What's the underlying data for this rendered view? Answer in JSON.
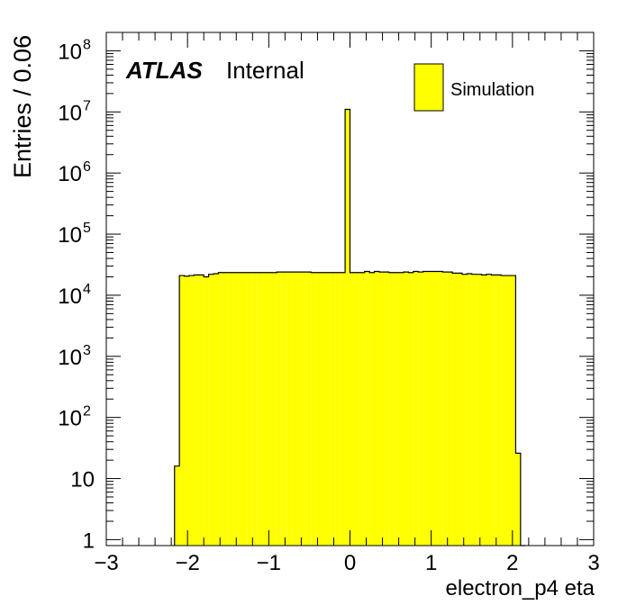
{
  "chart_data": {
    "type": "bar",
    "title": "",
    "xlabel": "electron_p4 eta",
    "ylabel": "Entries / 0.06",
    "xlim": [
      -3,
      3
    ],
    "ylim": [
      0.8,
      200000000
    ],
    "yscale": "log",
    "grid": false,
    "legend": "top-right",
    "x_tick_labels": [
      "−3",
      "−2",
      "−1",
      "0",
      "1",
      "2",
      "3"
    ],
    "y_tick_labels": [
      {
        "value": 1,
        "base": "1",
        "exp": ""
      },
      {
        "value": 10,
        "base": "10",
        "exp": ""
      },
      {
        "value": 100,
        "base": "10",
        "exp": "2"
      },
      {
        "value": 1000,
        "base": "10",
        "exp": "3"
      },
      {
        "value": 10000,
        "base": "10",
        "exp": "4"
      },
      {
        "value": 100000,
        "base": "10",
        "exp": "5"
      },
      {
        "value": 1000000,
        "base": "10",
        "exp": "6"
      },
      {
        "value": 10000000,
        "base": "10",
        "exp": "7"
      },
      {
        "value": 100000000,
        "base": "10",
        "exp": "8"
      }
    ],
    "annotation": {
      "bold": "ATLAS",
      "normal": "Internal"
    },
    "series": [
      {
        "name": "Simulation",
        "color": "#ffff00",
        "bin_edges": [
          -2.16,
          -2.1,
          -2.04,
          -1.98,
          -1.92,
          -1.86,
          -1.8,
          -1.74,
          -1.68,
          -1.62,
          -1.56,
          -1.5,
          -1.44,
          -1.38,
          -1.32,
          -1.26,
          -1.2,
          -1.14,
          -1.08,
          -1.02,
          -0.96,
          -0.9,
          -0.84,
          -0.78,
          -0.72,
          -0.66,
          -0.6,
          -0.54,
          -0.48,
          -0.42,
          -0.36,
          -0.3,
          -0.24,
          -0.18,
          -0.12,
          -0.06,
          0.0,
          0.06,
          0.12,
          0.18,
          0.24,
          0.3,
          0.36,
          0.42,
          0.48,
          0.54,
          0.6,
          0.66,
          0.72,
          0.78,
          0.84,
          0.9,
          0.96,
          1.02,
          1.08,
          1.14,
          1.2,
          1.26,
          1.32,
          1.38,
          1.44,
          1.5,
          1.56,
          1.62,
          1.68,
          1.74,
          1.8,
          1.86,
          1.92,
          1.98,
          2.04,
          2.1,
          2.16
        ],
        "values": [
          16,
          21000,
          20500,
          21000,
          21500,
          21500,
          20000,
          22000,
          22500,
          23500,
          23500,
          23500,
          23500,
          23500,
          23500,
          23500,
          23500,
          23500,
          23500,
          23500,
          23500,
          24000,
          24000,
          24000,
          24000,
          24000,
          24000,
          24000,
          23500,
          23500,
          23500,
          23500,
          23500,
          23500,
          23500,
          11000000,
          23500,
          23500,
          23500,
          24500,
          23500,
          24500,
          24000,
          24000,
          23500,
          23500,
          23500,
          24000,
          23500,
          24500,
          24000,
          24500,
          24500,
          24500,
          24500,
          24000,
          24000,
          23000,
          23000,
          22000,
          22500,
          22000,
          22000,
          21500,
          22000,
          21500,
          21500,
          21000,
          21000,
          21000,
          26,
          0
        ]
      }
    ]
  }
}
